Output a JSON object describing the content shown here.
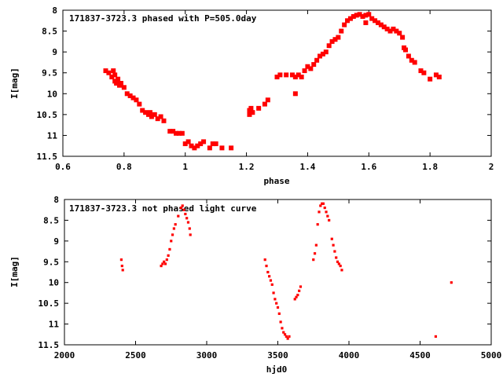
{
  "chart_data": [
    {
      "type": "scatter",
      "title": "171837-3723.3 phased with P=505.0day",
      "xlabel": "phase",
      "ylabel": "I[mag]",
      "xlim": [
        0.6,
        2.0
      ],
      "ylim": [
        8,
        11.5
      ],
      "y_inverted": true,
      "x_ticks": [
        "0.6",
        "0.8",
        "1",
        "1.2",
        "1.4",
        "1.6",
        "1.8",
        "2"
      ],
      "y_ticks": [
        "8",
        "8.5",
        "9",
        "9.5",
        "10",
        "10.5",
        "11",
        "11.5"
      ],
      "grid": false,
      "marker_color": "#ff0000",
      "series": [
        {
          "x": [
            0.74,
            0.75,
            0.76,
            0.765,
            0.77,
            0.77,
            0.775,
            0.78,
            0.785,
            0.79,
            0.8,
            0.81,
            0.82,
            0.83,
            0.84,
            0.85,
            0.86,
            0.87,
            0.88,
            0.885,
            0.89,
            0.9,
            0.91,
            0.92,
            0.93,
            0.95,
            0.96,
            0.97,
            0.98,
            0.99,
            1.0,
            1.01,
            1.02,
            1.03,
            1.04,
            1.05,
            1.06,
            1.08,
            1.09,
            1.1,
            1.12,
            1.15,
            1.21,
            1.21,
            1.215,
            1.22,
            1.24,
            1.26,
            1.27,
            1.3,
            1.31,
            1.33,
            1.35,
            1.36,
            1.36,
            1.37,
            1.38,
            1.39,
            1.4,
            1.41,
            1.42,
            1.43,
            1.44,
            1.45,
            1.46,
            1.47,
            1.48,
            1.49,
            1.5,
            1.51,
            1.52,
            1.53,
            1.54,
            1.55,
            1.56,
            1.57,
            1.58,
            1.59,
            1.6,
            1.59,
            1.61,
            1.62,
            1.63,
            1.64,
            1.65,
            1.66,
            1.67,
            1.68,
            1.69,
            1.7,
            1.71,
            1.715,
            1.72,
            1.73,
            1.74,
            1.75,
            1.77,
            1.78,
            1.8,
            1.82,
            1.83
          ],
          "y": [
            9.45,
            9.5,
            9.6,
            9.45,
            9.55,
            9.7,
            9.75,
            9.65,
            9.8,
            9.75,
            9.85,
            10.0,
            10.05,
            10.1,
            10.15,
            10.25,
            10.4,
            10.45,
            10.5,
            10.45,
            10.55,
            10.5,
            10.6,
            10.55,
            10.65,
            10.9,
            10.9,
            10.95,
            10.95,
            10.95,
            11.2,
            11.15,
            11.25,
            11.3,
            11.25,
            11.2,
            11.15,
            11.3,
            11.2,
            11.2,
            11.3,
            11.3,
            10.4,
            10.5,
            10.35,
            10.45,
            10.35,
            10.25,
            10.15,
            9.6,
            9.55,
            9.55,
            9.55,
            10.0,
            9.6,
            9.55,
            9.6,
            9.45,
            9.35,
            9.4,
            9.3,
            9.2,
            9.1,
            9.05,
            9.0,
            8.85,
            8.75,
            8.7,
            8.65,
            8.5,
            8.35,
            8.25,
            8.2,
            8.15,
            8.12,
            8.1,
            8.15,
            8.12,
            8.1,
            8.3,
            8.2,
            8.25,
            8.3,
            8.35,
            8.4,
            8.45,
            8.5,
            8.45,
            8.5,
            8.55,
            8.65,
            8.9,
            8.95,
            9.1,
            9.2,
            9.25,
            9.45,
            9.5,
            9.65,
            9.55,
            9.6
          ]
        }
      ]
    },
    {
      "type": "scatter",
      "title": "171837-3723.3 not phased light curve",
      "xlabel": "hjd0",
      "ylabel": "I[mag]",
      "xlim": [
        2000,
        5000
      ],
      "ylim": [
        8,
        11.5
      ],
      "y_inverted": true,
      "x_ticks": [
        "2000",
        "2500",
        "3000",
        "3500",
        "4000",
        "4500",
        "5000"
      ],
      "y_ticks": [
        "8",
        "8.5",
        "9",
        "9.5",
        "10",
        "10.5",
        "11",
        "11.5"
      ],
      "grid": false,
      "marker_color": "#ff0000",
      "series": [
        {
          "x": [
            2400,
            2405,
            2410,
            2680,
            2690,
            2700,
            2710,
            2720,
            2730,
            2740,
            2750,
            2760,
            2770,
            2780,
            2800,
            2820,
            2830,
            2840,
            2850,
            2860,
            2870,
            2880,
            2885,
            3410,
            3420,
            3430,
            3440,
            3450,
            3460,
            3470,
            3480,
            3490,
            3500,
            3510,
            3520,
            3530,
            3540,
            3550,
            3560,
            3570,
            3580,
            3620,
            3630,
            3640,
            3650,
            3660,
            3750,
            3760,
            3770,
            3780,
            3790,
            3800,
            3810,
            3820,
            3830,
            3840,
            3850,
            3860,
            3880,
            3890,
            3900,
            3910,
            3920,
            3930,
            3940,
            3950,
            4610,
            4720
          ],
          "y": [
            9.45,
            9.6,
            9.7,
            9.6,
            9.55,
            9.5,
            9.55,
            9.45,
            9.35,
            9.2,
            9.0,
            8.85,
            8.7,
            8.6,
            8.4,
            8.2,
            8.15,
            8.25,
            8.35,
            8.45,
            8.55,
            8.7,
            8.85,
            9.45,
            9.6,
            9.75,
            9.85,
            9.95,
            10.05,
            10.25,
            10.4,
            10.5,
            10.6,
            10.75,
            10.95,
            11.1,
            11.2,
            11.25,
            11.3,
            11.35,
            11.3,
            10.4,
            10.35,
            10.3,
            10.2,
            10.1,
            9.45,
            9.3,
            9.1,
            8.6,
            8.3,
            8.15,
            8.1,
            8.1,
            8.2,
            8.3,
            8.4,
            8.5,
            8.95,
            9.1,
            9.25,
            9.4,
            9.5,
            9.55,
            9.6,
            9.7,
            11.3,
            10.0
          ]
        }
      ]
    }
  ]
}
